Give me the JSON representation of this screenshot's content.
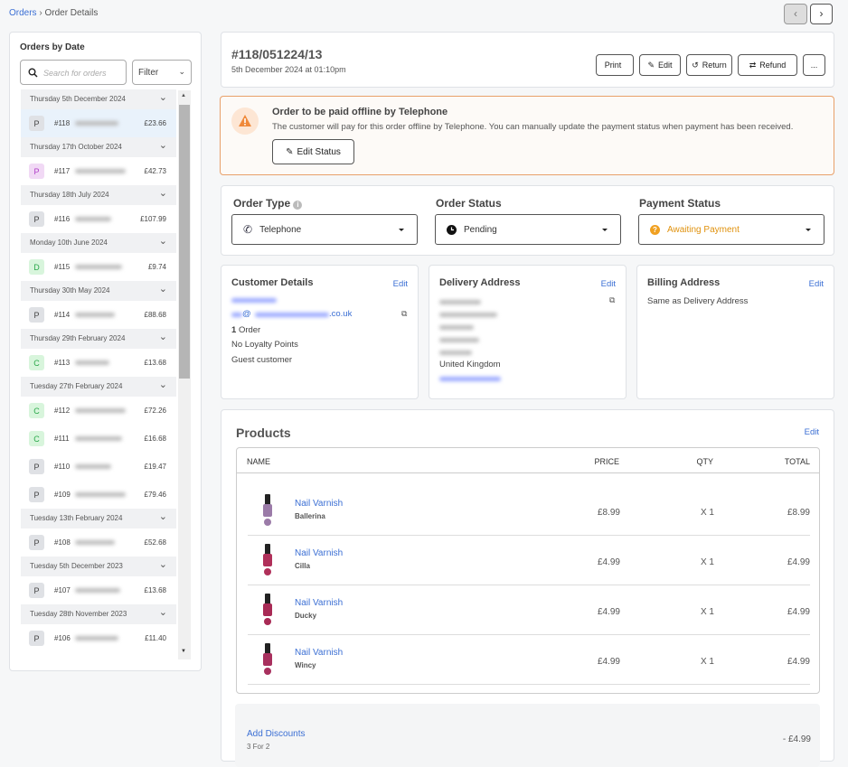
{
  "breadcrumb": {
    "root": "Orders",
    "current": "Order Details"
  },
  "sidebar": {
    "title": "Orders by Date",
    "search_placeholder": "Search for orders",
    "filter": "Filter",
    "groups": [
      {
        "date": "Thursday 5th December 2024",
        "orders": [
          {
            "badge": "P",
            "color": "#dfe1e5",
            "number": "#118",
            "total": "£23.66",
            "selected": true
          }
        ]
      },
      {
        "date": "Thursday 17th October 2024",
        "orders": [
          {
            "badge": "P",
            "color": "#f1d9f5",
            "number": "#117",
            "total": "£42.73"
          }
        ]
      },
      {
        "date": "Thursday 18th July 2024",
        "orders": [
          {
            "badge": "P",
            "color": "#dfe1e5",
            "number": "#116",
            "total": "£107.99"
          }
        ]
      },
      {
        "date": "Monday 10th June 2024",
        "orders": [
          {
            "badge": "D",
            "color": "#d8f5dc",
            "number": "#115",
            "total": "£9.74"
          }
        ]
      },
      {
        "date": "Thursday 30th May 2024",
        "orders": [
          {
            "badge": "P",
            "color": "#dfe1e5",
            "number": "#114",
            "total": "£88.68"
          }
        ]
      },
      {
        "date": "Thursday 29th February 2024",
        "orders": [
          {
            "badge": "C",
            "color": "#d8f5dc",
            "number": "#113",
            "total": "£13.68"
          }
        ]
      },
      {
        "date": "Tuesday 27th February 2024",
        "orders": [
          {
            "badge": "C",
            "color": "#d8f5dc",
            "number": "#112",
            "total": "£72.26"
          },
          {
            "badge": "C",
            "color": "#d8f5dc",
            "number": "#111",
            "total": "£16.68"
          },
          {
            "badge": "P",
            "color": "#dfe1e5",
            "number": "#110",
            "total": "£19.47"
          },
          {
            "badge": "P",
            "color": "#dfe1e5",
            "number": "#109",
            "total": "£79.46"
          }
        ]
      },
      {
        "date": "Tuesday 13th February 2024",
        "orders": [
          {
            "badge": "P",
            "color": "#dfe1e5",
            "number": "#108",
            "total": "£52.68"
          }
        ]
      },
      {
        "date": "Tuesday 5th December 2023",
        "orders": [
          {
            "badge": "P",
            "color": "#dfe1e5",
            "number": "#107",
            "total": "£13.68"
          }
        ]
      },
      {
        "date": "Tuesday 28th November 2023",
        "orders": [
          {
            "badge": "P",
            "color": "#dfe1e5",
            "number": "#106",
            "total": "£11.40"
          }
        ]
      }
    ]
  },
  "order": {
    "number": "#118/051224/13",
    "date": "5th December 2024 at 01:10pm",
    "buttons": [
      "Print",
      "Edit",
      "Return",
      "Refund",
      "..."
    ]
  },
  "alert": {
    "title": "Order to be paid offline by Telephone",
    "text": "The customer will pay for this order offline by Telephone. You can manually update the payment status when payment has been received.",
    "button": "Edit Status"
  },
  "status": {
    "order_type_label": "Order Type",
    "order_type": "Telephone",
    "order_status_label": "Order Status",
    "order_status": "Pending",
    "payment_status_label": "Payment Status",
    "payment_status": "Awaiting Payment"
  },
  "customer": {
    "title": "Customer Details",
    "edit": "Edit",
    "email_at": "@",
    "email_domain": ".co.uk",
    "order_count": "1",
    "order_word": "Order",
    "loyalty": "No Loyalty Points",
    "type": "Guest customer"
  },
  "delivery": {
    "title": "Delivery Address",
    "edit": "Edit",
    "country": "United Kingdom"
  },
  "billing": {
    "title": "Billing Address",
    "edit": "Edit",
    "text": "Same as Delivery Address"
  },
  "products": {
    "title": "Products",
    "edit": "Edit",
    "columns": [
      "NAME",
      "PRICE",
      "QTY",
      "TOTAL"
    ],
    "rows": [
      {
        "name": "Nail Varnish",
        "variant": "Ballerina",
        "price": "£8.99",
        "qty": "X 1",
        "total": "£8.99",
        "color": "#9b7ba8"
      },
      {
        "name": "Nail Varnish",
        "variant": "Cilla",
        "price": "£4.99",
        "qty": "X 1",
        "total": "£4.99",
        "color": "#b0305a"
      },
      {
        "name": "Nail Varnish",
        "variant": "Ducky",
        "price": "£4.99",
        "qty": "X 1",
        "total": "£4.99",
        "color": "#a82a55"
      },
      {
        "name": "Nail Varnish",
        "variant": "Wincy",
        "price": "£4.99",
        "qty": "X 1",
        "total": "£4.99",
        "color": "#a8305e"
      }
    ]
  },
  "discounts": {
    "link": "Add Discounts",
    "name": "3 For 2",
    "amount": "- £4.99"
  }
}
